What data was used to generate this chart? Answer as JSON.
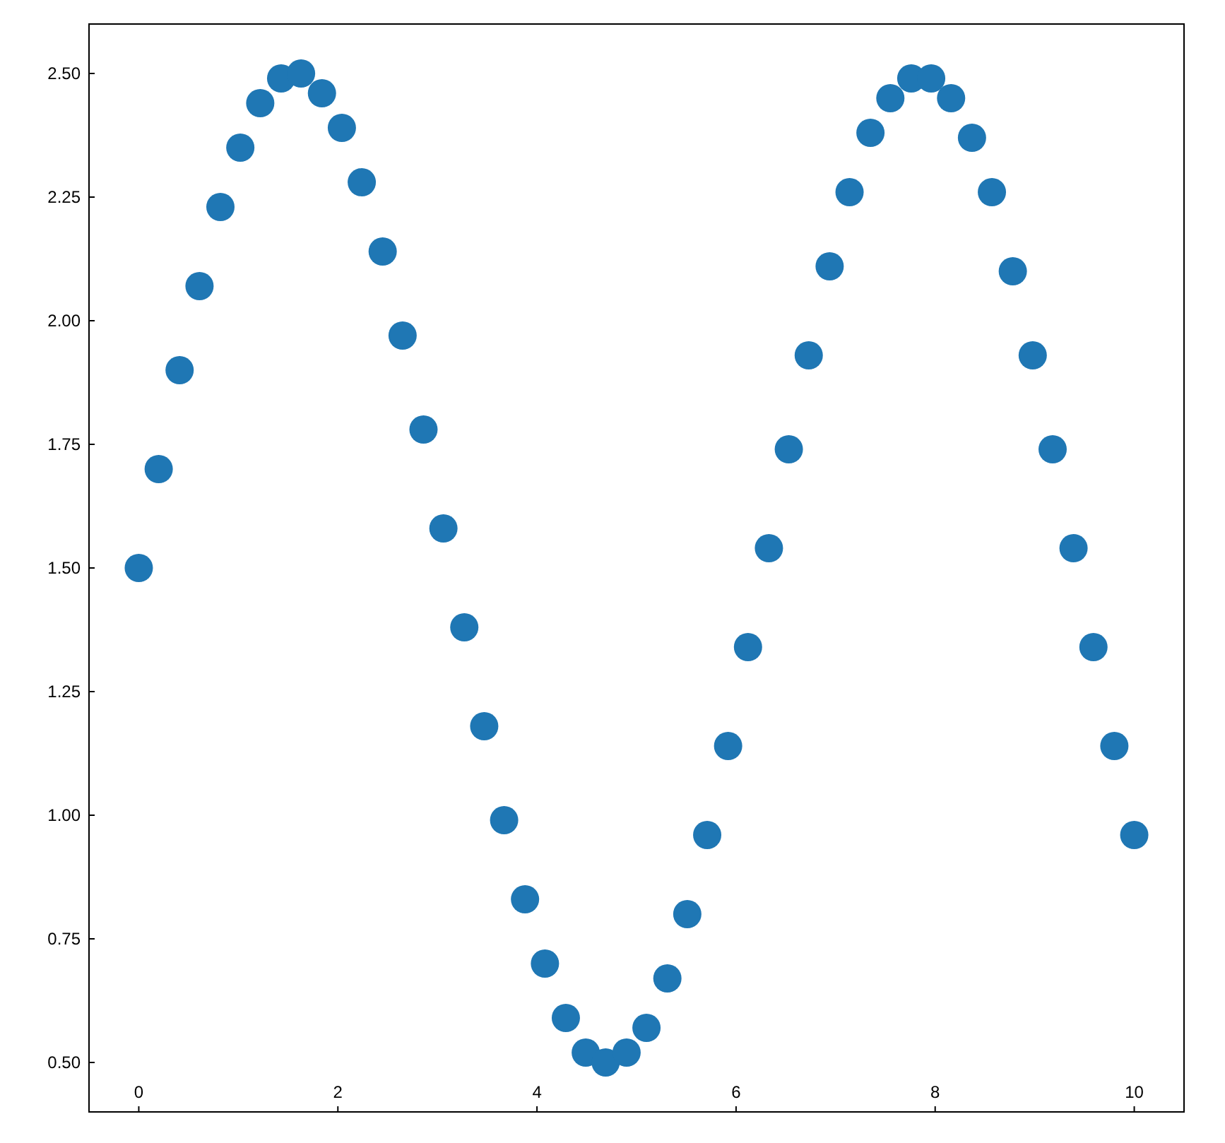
{
  "chart_data": {
    "type": "scatter",
    "marker": "circle",
    "grid": false,
    "x": [
      0,
      0.2,
      0.41,
      0.61,
      0.82,
      1.02,
      1.22,
      1.43,
      1.63,
      1.84,
      2.04,
      2.24,
      2.45,
      2.65,
      2.86,
      3.06,
      3.27,
      3.47,
      3.67,
      3.88,
      4.08,
      4.29,
      4.49,
      4.69,
      4.9,
      5.1,
      5.31,
      5.51,
      5.71,
      5.92,
      6.12,
      6.33,
      6.53,
      6.73,
      6.94,
      7.14,
      7.35,
      7.55,
      7.76,
      7.96,
      8.16,
      8.37,
      8.57,
      8.78,
      8.98,
      9.18,
      9.39,
      9.59,
      9.8,
      10
    ],
    "series": [
      {
        "color": "#1f77b4",
        "values": [
          1.5,
          1.7,
          1.9,
          2.07,
          2.23,
          2.35,
          2.44,
          2.49,
          2.5,
          2.46,
          2.39,
          2.28,
          2.14,
          1.97,
          1.78,
          1.58,
          1.38,
          1.18,
          0.99,
          0.83,
          0.7,
          0.59,
          0.52,
          0.5,
          0.52,
          0.57,
          0.67,
          0.8,
          0.96,
          1.14,
          1.34,
          1.54,
          1.74,
          1.93,
          2.11,
          2.26,
          2.38,
          2.45,
          2.49,
          2.49,
          2.45,
          2.37,
          2.26,
          2.1,
          1.93,
          1.74,
          1.54,
          1.34,
          1.14,
          0.96
        ]
      }
    ],
    "xlim": [
      -0.5,
      10.5
    ],
    "xticks": [
      0,
      2,
      4,
      6,
      8,
      10
    ],
    "ylim": [
      0.4,
      2.6
    ],
    "yticks": [
      {
        "value": 0.5,
        "label": "0.50"
      },
      {
        "value": 0.75,
        "label": "0.75"
      },
      {
        "value": 1,
        "label": "1.00"
      },
      {
        "value": 1.25,
        "label": "1.25"
      },
      {
        "value": 1.5,
        "label": "1.50"
      },
      {
        "value": 1.75,
        "label": "1.75"
      },
      {
        "value": 2,
        "label": "2.00"
      },
      {
        "value": 2.25,
        "label": "2.25"
      },
      {
        "value": 2.5,
        "label": "2.50"
      }
    ]
  }
}
